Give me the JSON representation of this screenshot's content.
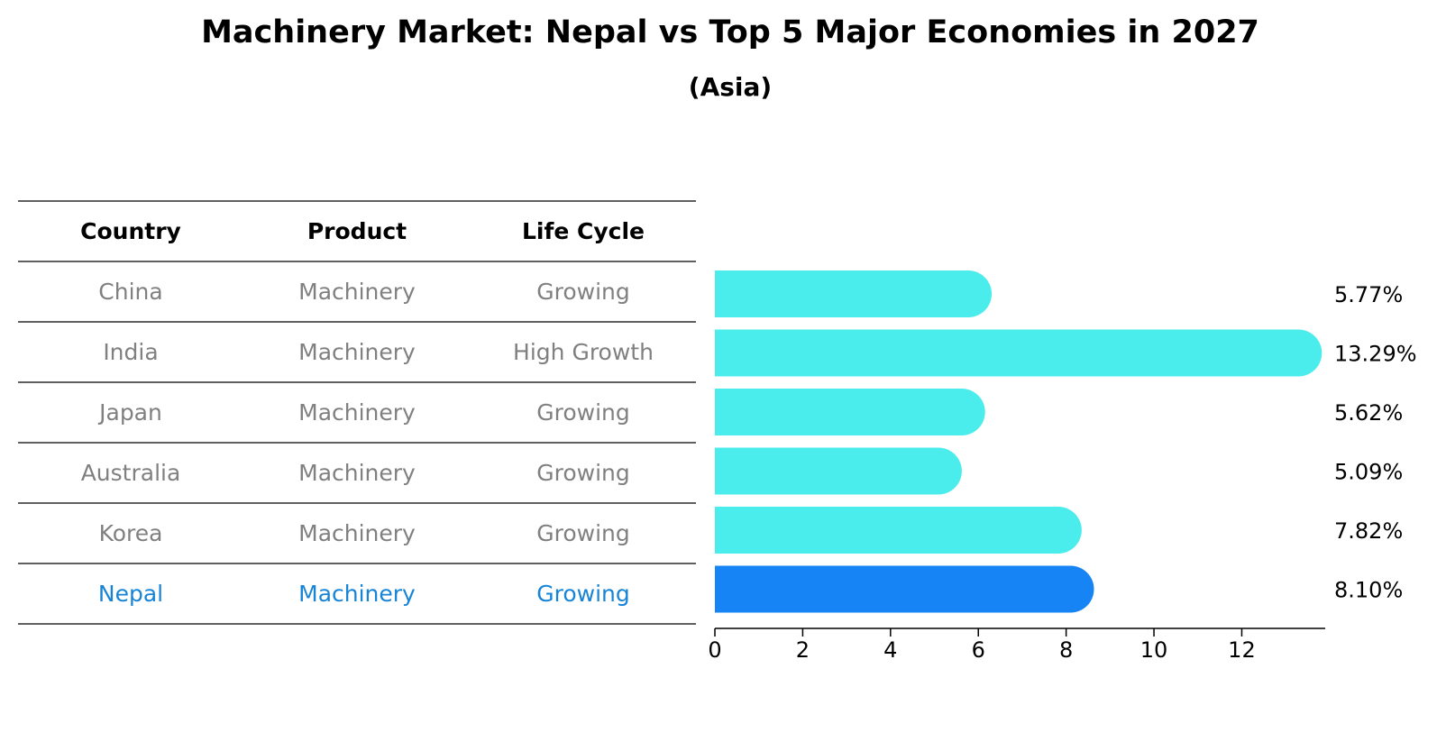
{
  "chart_data": {
    "type": "bar",
    "orientation": "horizontal",
    "title": "Machinery Market: Nepal vs Top 5 Major Economies in 2027",
    "subtitle": "(Asia)",
    "table": {
      "columns": [
        "Country",
        "Product",
        "Life Cycle"
      ],
      "rows": [
        [
          "China",
          "Machinery",
          "Growing"
        ],
        [
          "India",
          "Machinery",
          "High Growth"
        ],
        [
          "Japan",
          "Machinery",
          "Growing"
        ],
        [
          "Australia",
          "Machinery",
          "Growing"
        ],
        [
          "Korea",
          "Machinery",
          "Growing"
        ],
        [
          "Nepal",
          "Machinery",
          "Growing"
        ]
      ]
    },
    "categories": [
      "China",
      "India",
      "Japan",
      "Australia",
      "Korea",
      "Nepal"
    ],
    "values": [
      5.77,
      13.29,
      5.62,
      5.09,
      7.82,
      8.1
    ],
    "value_labels": [
      "5.77%",
      "13.29%",
      "5.62%",
      "5.09%",
      "7.82%",
      "8.10%"
    ],
    "highlight": "Nepal",
    "xlim": [
      0,
      13.9
    ],
    "xticks": [
      0,
      2,
      4,
      6,
      8,
      10,
      12
    ],
    "xlabel": "",
    "ylabel": "",
    "grid": false,
    "colors": {
      "bar": "#4AEDEC",
      "highlight_bar": "#1784F5",
      "table_text": "#808080",
      "highlight_text": "#1784D6",
      "lines": "#000000"
    }
  }
}
